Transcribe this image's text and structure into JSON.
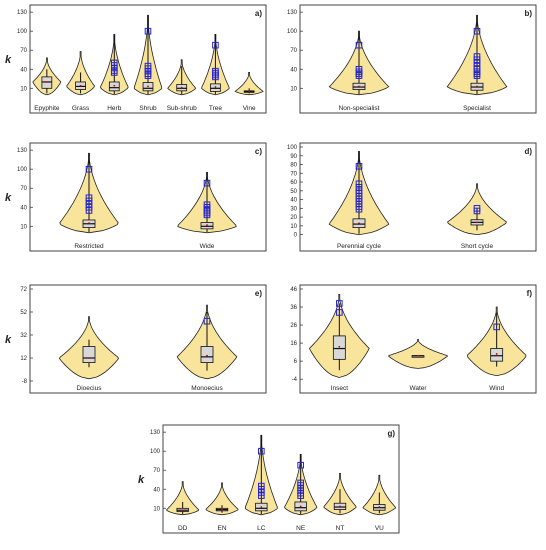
{
  "colors": {
    "violin": "#f8e49a",
    "box": "#d8d8d8",
    "outlier": "#2222dd",
    "mean": "#cc0000"
  },
  "chart_data": [
    {
      "panel": "a)",
      "type": "violin",
      "ylabel": "k",
      "yticks": [
        10,
        40,
        70,
        100,
        130
      ],
      "ylim": [
        -10,
        135
      ],
      "categories": [
        "Epyphite",
        "Grass",
        "Herb",
        "Shrub",
        "Sub-shrub",
        "Tree",
        "Vine"
      ],
      "violins": [
        {
          "min": 2,
          "q1": 10,
          "median": 20,
          "q3": 28,
          "max": 40,
          "top": 58,
          "bottom": 0,
          "mean": 20,
          "outliers": []
        },
        {
          "min": 2,
          "q1": 8,
          "median": 13,
          "q3": 20,
          "max": 35,
          "top": 68,
          "bottom": 0,
          "mean": 14,
          "outliers": []
        },
        {
          "min": 1,
          "q1": 6,
          "median": 11,
          "q3": 20,
          "max": 95,
          "top": 95,
          "bottom": 0,
          "mean": 14,
          "outliers": [
            35,
            38,
            42,
            46,
            50
          ]
        },
        {
          "min": 1,
          "q1": 6,
          "median": 10,
          "q3": 19,
          "max": 125,
          "top": 125,
          "bottom": 0,
          "mean": 13,
          "outliers": [
            30,
            33,
            37,
            41,
            45,
            100
          ]
        },
        {
          "min": 1,
          "q1": 6,
          "median": 10,
          "q3": 16,
          "max": 45,
          "top": 55,
          "bottom": 0,
          "mean": 11,
          "outliers": []
        },
        {
          "min": 1,
          "q1": 5,
          "median": 10,
          "q3": 17,
          "max": 95,
          "top": 95,
          "bottom": 0,
          "mean": 12,
          "outliers": [
            28,
            31,
            34,
            37,
            78
          ]
        },
        {
          "min": 2,
          "q1": 4,
          "median": 5,
          "q3": 6,
          "max": 10,
          "top": 35,
          "bottom": 0,
          "mean": 5,
          "outliers": []
        }
      ]
    },
    {
      "panel": "b)",
      "type": "violin",
      "ylabel": "",
      "yticks": [
        10,
        40,
        70,
        100,
        130
      ],
      "ylim": [
        -10,
        135
      ],
      "categories": [
        "Non-specialist",
        "Specialist"
      ],
      "violins": [
        {
          "min": 1,
          "q1": 8,
          "median": 12,
          "q3": 18,
          "max": 100,
          "top": 100,
          "bottom": 0,
          "mean": 13,
          "outliers": [
            30,
            33,
            36,
            40,
            78
          ]
        },
        {
          "min": 1,
          "q1": 7,
          "median": 12,
          "q3": 18,
          "max": 125,
          "top": 125,
          "bottom": 0,
          "mean": 13,
          "outliers": [
            30,
            33,
            36,
            40,
            45,
            50,
            55,
            60,
            100
          ]
        }
      ]
    },
    {
      "panel": "c)",
      "type": "violin",
      "ylabel": "k",
      "yticks": [
        10,
        40,
        70,
        100,
        130
      ],
      "ylim": [
        -10,
        135
      ],
      "categories": [
        "Restricted",
        "Wide"
      ],
      "violins": [
        {
          "min": 1,
          "q1": 8,
          "median": 14,
          "q3": 20,
          "max": 125,
          "top": 125,
          "bottom": 0,
          "mean": 15,
          "outliers": [
            35,
            40,
            45,
            50,
            55,
            100
          ]
        },
        {
          "min": 1,
          "q1": 6,
          "median": 10,
          "q3": 16,
          "max": 95,
          "top": 95,
          "bottom": 0,
          "mean": 12,
          "outliers": [
            28,
            31,
            34,
            37,
            40,
            44,
            78
          ]
        }
      ]
    },
    {
      "panel": "d)",
      "type": "violin",
      "ylabel": "",
      "yticks": [
        0,
        10,
        20,
        30,
        40,
        50,
        60,
        70,
        80,
        90,
        100
      ],
      "ylim": [
        -5,
        100
      ],
      "categories": [
        "Perennial cycle",
        "Short cycle"
      ],
      "violins": [
        {
          "min": 1,
          "q1": 8,
          "median": 12,
          "q3": 18,
          "max": 95,
          "top": 95,
          "bottom": 0,
          "mean": 13,
          "outliers": [
            29,
            32,
            35,
            38,
            41,
            44,
            47,
            50,
            54,
            58,
            78
          ]
        },
        {
          "min": 5,
          "q1": 11,
          "median": 14,
          "q3": 17,
          "max": 30,
          "top": 58,
          "bottom": 0,
          "mean": 14,
          "outliers": [
            27,
            30
          ]
        }
      ]
    },
    {
      "panel": "e)",
      "type": "violin",
      "ylabel": "k",
      "yticks": [
        -8,
        12,
        32,
        52,
        72
      ],
      "ylim": [
        -8,
        72
      ],
      "categories": [
        "Dioecius",
        "Monoecius"
      ],
      "violins": [
        {
          "min": 4,
          "q1": 8,
          "median": 12,
          "q3": 22,
          "max": 28,
          "top": 48,
          "bottom": -6,
          "mean": 12,
          "outliers": []
        },
        {
          "min": 1,
          "q1": 8,
          "median": 13,
          "q3": 22,
          "max": 52,
          "top": 58,
          "bottom": -6,
          "mean": 14,
          "outliers": [
            44
          ]
        }
      ]
    },
    {
      "panel": "f)",
      "type": "violin",
      "ylabel": "",
      "yticks": [
        -4,
        6,
        16,
        26,
        36,
        46
      ],
      "ylim": [
        -5,
        46
      ],
      "categories": [
        "Insect",
        "Water",
        "Wind"
      ],
      "violins": [
        {
          "min": 1,
          "q1": 7,
          "median": 13,
          "q3": 20,
          "max": 38,
          "top": 43,
          "bottom": -3,
          "mean": 14,
          "outliers": [
            33,
            38
          ]
        },
        {
          "min": 9,
          "q1": 9,
          "median": 9,
          "q3": 9,
          "max": 9,
          "top": 18,
          "bottom": 2,
          "mean": 9,
          "outliers": []
        },
        {
          "min": 3,
          "q1": 6,
          "median": 9,
          "q3": 13,
          "max": 33,
          "top": 36,
          "bottom": -2,
          "mean": 10,
          "outliers": [
            25
          ]
        }
      ]
    },
    {
      "panel": "g)",
      "type": "violin",
      "ylabel": "k",
      "yticks": [
        10,
        40,
        70,
        100,
        130
      ],
      "ylim": [
        -10,
        135
      ],
      "categories": [
        "DD",
        "EN",
        "LC",
        "NE",
        "NT",
        "VU"
      ],
      "violins": [
        {
          "min": 1,
          "q1": 5,
          "median": 7,
          "q3": 10,
          "max": 20,
          "top": 52,
          "bottom": 0,
          "mean": 7,
          "outliers": []
        },
        {
          "min": 3,
          "q1": 6,
          "median": 8,
          "q3": 10,
          "max": 15,
          "top": 50,
          "bottom": 0,
          "mean": 8,
          "outliers": []
        },
        {
          "min": 1,
          "q1": 6,
          "median": 10,
          "q3": 18,
          "max": 125,
          "top": 125,
          "bottom": 0,
          "mean": 12,
          "outliers": [
            30,
            35,
            40,
            45,
            100
          ]
        },
        {
          "min": 1,
          "q1": 6,
          "median": 11,
          "q3": 20,
          "max": 95,
          "top": 95,
          "bottom": 0,
          "mean": 13,
          "outliers": [
            30,
            34,
            38,
            42,
            46,
            50,
            78
          ]
        },
        {
          "min": 2,
          "q1": 8,
          "median": 12,
          "q3": 18,
          "max": 40,
          "top": 65,
          "bottom": 0,
          "mean": 13,
          "outliers": []
        },
        {
          "min": 2,
          "q1": 7,
          "median": 11,
          "q3": 16,
          "max": 35,
          "top": 62,
          "bottom": 0,
          "mean": 12,
          "outliers": []
        }
      ]
    }
  ]
}
